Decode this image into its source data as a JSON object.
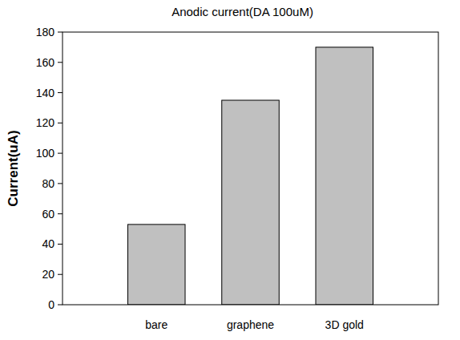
{
  "chart_data": {
    "type": "bar",
    "title": "Anodic current(DA 100uM)",
    "y_label": "Current(uA)",
    "categories": [
      "bare",
      "graphene",
      "3D gold"
    ],
    "values": [
      53,
      135,
      170
    ],
    "color": "#c0c0c0",
    "ylim": [
      0,
      180
    ],
    "yticks": [
      0,
      20,
      40,
      60,
      80,
      100,
      120,
      140,
      160,
      180
    ],
    "grid": false
  }
}
